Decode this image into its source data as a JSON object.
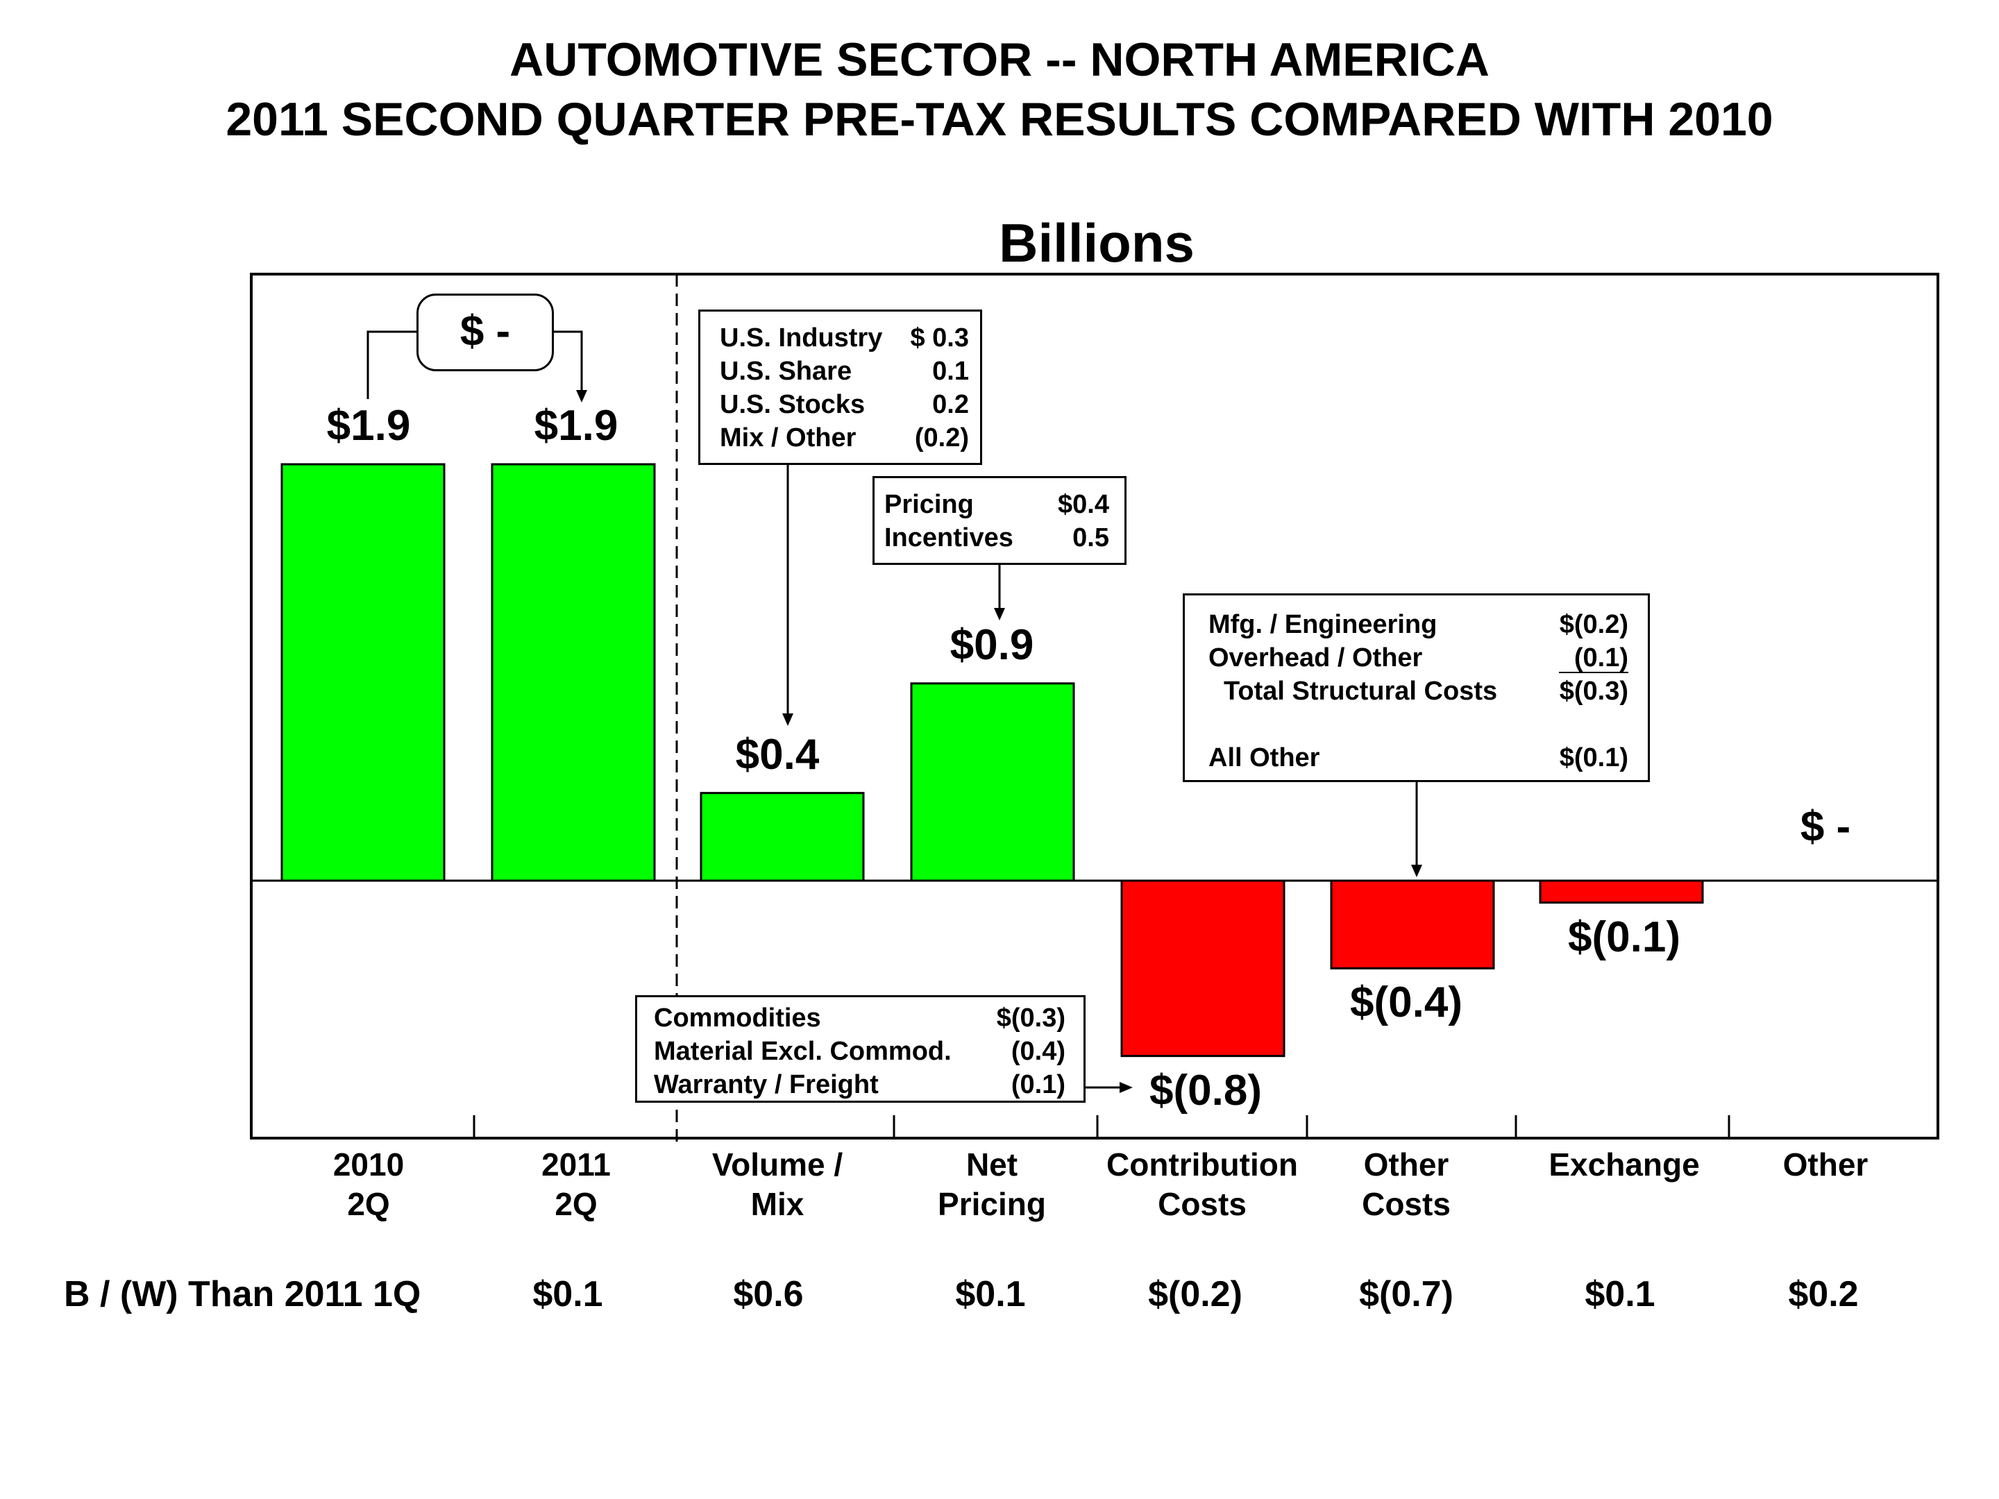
{
  "title_line1": "AUTOMOTIVE SECTOR -- NORTH AMERICA",
  "title_line2": "2011 SECOND QUARTER PRE-TAX RESULTS COMPARED WITH 2010",
  "units_label": "Billions",
  "colors": {
    "positive": "#00ff00",
    "negative": "#ff0000",
    "frame": "#000000"
  },
  "chart_data": {
    "type": "bar",
    "subtype": "waterfall",
    "title": "AUTOMOTIVE SECTOR -- NORTH AMERICA / 2011 SECOND QUARTER PRE-TAX RESULTS COMPARED WITH 2010",
    "ylabel": "Billions",
    "categories": [
      {
        "line1": "2010",
        "line2": "2Q"
      },
      {
        "line1": "2011",
        "line2": "2Q"
      },
      {
        "line1": "Volume /",
        "line2": "Mix"
      },
      {
        "line1": "Net",
        "line2": "Pricing"
      },
      {
        "line1": "Contribution",
        "line2": "Costs"
      },
      {
        "line1": "Other",
        "line2": "Costs"
      },
      {
        "line1": "Exchange",
        "line2": ""
      },
      {
        "line1": "Other",
        "line2": ""
      }
    ],
    "values": [
      1.9,
      1.9,
      0.4,
      0.9,
      -0.8,
      -0.4,
      -0.1,
      0.0
    ],
    "value_labels": [
      "$1.9",
      "$1.9",
      "$0.4",
      "$0.9",
      "$(0.8)",
      "$(0.4)",
      "$(0.1)",
      "$ -"
    ],
    "ylim": [
      -1.0,
      2.5
    ],
    "change_callout": "$ -",
    "bw_row": {
      "label": "B / (W) Than 2011 1Q",
      "values": [
        "$0.1",
        "$0.6",
        "$0.1",
        "$(0.2)",
        "$(0.7)",
        "$0.1",
        "$0.2"
      ]
    }
  },
  "callouts": {
    "volume_mix": [
      {
        "label": "U.S. Industry",
        "value": "$ 0.3"
      },
      {
        "label": "U.S. Share",
        "value": "0.1"
      },
      {
        "label": "U.S. Stocks",
        "value": "0.2"
      },
      {
        "label": "Mix / Other",
        "value": "(0.2)"
      }
    ],
    "net_pricing": [
      {
        "label": "Pricing",
        "value": "$0.4"
      },
      {
        "label": "Incentives",
        "value": "0.5"
      }
    ],
    "other_costs": [
      {
        "label": "Mfg. / Engineering",
        "value": "$(0.2)"
      },
      {
        "label": "Overhead / Other",
        "value": "(0.1)"
      },
      {
        "label": "Total Structural Costs",
        "value": "$(0.3)"
      },
      {
        "label": "All Other",
        "value": "$(0.1)"
      }
    ],
    "contribution_costs": [
      {
        "label": "Commodities",
        "value": "$(0.3)"
      },
      {
        "label": "Material Excl. Commod.",
        "value": "(0.4)"
      },
      {
        "label": "Warranty / Freight",
        "value": "(0.1)"
      }
    ]
  }
}
